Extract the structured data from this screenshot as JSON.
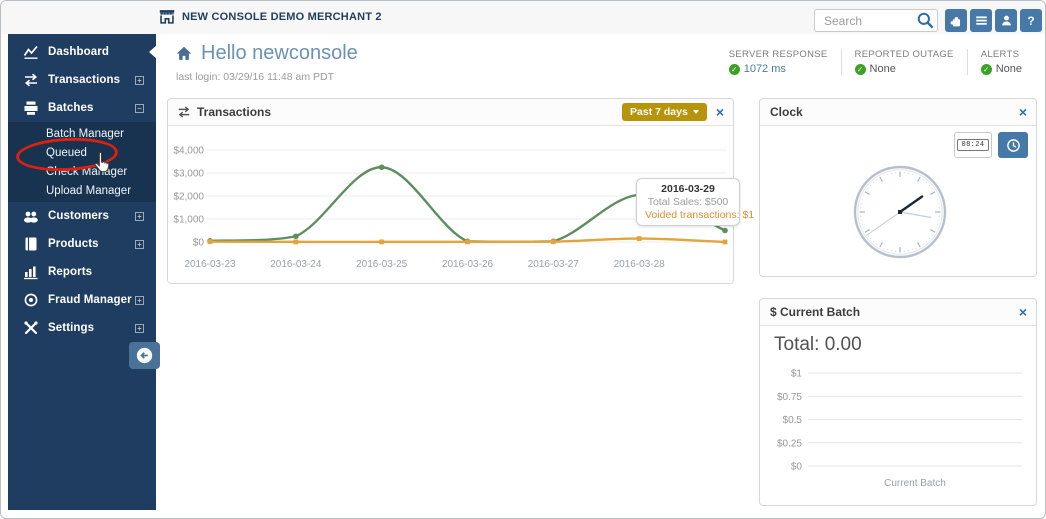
{
  "window": {
    "merchant_name": "NEW CONSOLE DEMO MERCHANT 2",
    "search_placeholder": "Search",
    "help_label": "?"
  },
  "status_bar": {
    "items": [
      {
        "label": "SERVER RESPONSE",
        "value": "1072 ms"
      },
      {
        "label": "REPORTED OUTAGE",
        "value": "None"
      },
      {
        "label": "ALERTS",
        "value": "None"
      }
    ]
  },
  "sidebar": {
    "items": [
      {
        "label": "Dashboard"
      },
      {
        "label": "Transactions"
      },
      {
        "label": "Batches"
      },
      {
        "label": "Customers"
      },
      {
        "label": "Products"
      },
      {
        "label": "Reports"
      },
      {
        "label": "Fraud Manager"
      },
      {
        "label": "Settings"
      }
    ],
    "batches_submenu": [
      {
        "label": "Batch Manager"
      },
      {
        "label": "Queued"
      },
      {
        "label": "Check Manager"
      },
      {
        "label": "Upload Manager"
      }
    ]
  },
  "page": {
    "greeting": "Hello newconsole",
    "last_login": "last login: 03/29/16 11:48 am PDT"
  },
  "transactions_panel": {
    "title": "Transactions",
    "range_button": "Past 7 days",
    "tooltip_date": "2016-03-29",
    "tooltip_sales": "Total Sales: $500",
    "tooltip_voided": "Voided transactions: $1"
  },
  "clock_panel": {
    "title": "Clock",
    "digital_time": "08:24"
  },
  "batch_panel": {
    "title": "$ Current Batch",
    "total": "Total: 0.00"
  },
  "chart_data": [
    {
      "type": "line",
      "title": "Transactions",
      "x": [
        "2016-03-23",
        "2016-03-24",
        "2016-03-25",
        "2016-03-26",
        "2016-03-27",
        "2016-03-28",
        "2016-03-29"
      ],
      "x_labels_shown": 6,
      "series": [
        {
          "name": "Total Sales",
          "color": "#5e8e5e",
          "values": [
            50,
            250,
            3250,
            30,
            30,
            2050,
            500
          ]
        },
        {
          "name": "Voided transactions",
          "color": "#e2a43c",
          "values": [
            15,
            5,
            5,
            5,
            15,
            150,
            1
          ]
        }
      ],
      "ylim": [
        0,
        4000
      ],
      "yticks": [
        0,
        1000,
        2000,
        3000,
        4000
      ],
      "ytick_labels": [
        "$0",
        "$1,000",
        "$2,000",
        "$3,000",
        "$4,000"
      ],
      "grid": true,
      "legend": "none"
    },
    {
      "type": "bar",
      "title": "Current Batch",
      "categories": [
        "Current Batch"
      ],
      "values": [],
      "ylim": [
        0,
        1
      ],
      "yticks": [
        0,
        0.25,
        0.5,
        0.75,
        1
      ],
      "ytick_labels": [
        "$0",
        "$0.25",
        "$0.5",
        "$0.75",
        "$1"
      ],
      "grid": true,
      "legend": "none"
    }
  ],
  "colors": {
    "sidebar": "#1f3d60",
    "sidebar_submenu": "#18334f",
    "accent_blue": "#4678a8",
    "link_blue": "#2e6da4",
    "gold": "#b8940b",
    "green_line": "#5e8e5e",
    "orange_line": "#e2a43c",
    "status_green": "#3ba226",
    "annotation_red": "#dd2110"
  }
}
